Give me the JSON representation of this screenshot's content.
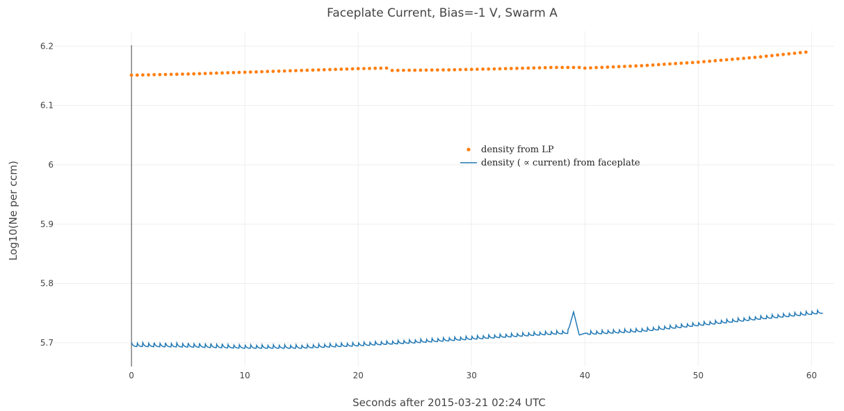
{
  "chart_data": {
    "type": "line",
    "title": "Faceplate Current, Bias=-1 V, Swarm A",
    "xlabel": "Seconds after 2015-03-21 02:24 UTC",
    "ylabel": "Log10(Ne per ccm)",
    "xlim": [
      -7,
      62
    ],
    "ylim": [
      5.66,
      6.225
    ],
    "xticks": [
      0,
      10,
      20,
      30,
      40,
      50,
      60
    ],
    "yticks": [
      5.7,
      5.8,
      5.9,
      6,
      6.1,
      6.2
    ],
    "grid": true,
    "legend_position": "center-right",
    "series": [
      {
        "name": "density from LP",
        "mode": "markers",
        "color": "#ff7f0e",
        "x": [
          0,
          5,
          10,
          15,
          20,
          22.5,
          23,
          28,
          33,
          37,
          39.5,
          40,
          45,
          50,
          55,
          59.5
        ],
        "y": [
          6.151,
          6.153,
          6.156,
          6.159,
          6.162,
          6.163,
          6.159,
          6.16,
          6.162,
          6.164,
          6.164,
          6.163,
          6.167,
          6.173,
          6.181,
          6.19
        ],
        "x_start": 0,
        "x_end": 59.5,
        "points": 120
      },
      {
        "name": "density ( ∝ current) from faceplate",
        "mode": "lines",
        "color": "#1f77b4",
        "x": [
          0,
          5,
          10,
          15,
          20,
          25,
          30,
          35,
          38.5,
          39.0,
          39.5,
          40,
          45,
          50,
          55,
          61
        ],
        "y": [
          5.696,
          5.695,
          5.693,
          5.693,
          5.697,
          5.702,
          5.708,
          5.714,
          5.718,
          5.752,
          5.713,
          5.716,
          5.721,
          5.731,
          5.741,
          5.752
        ],
        "ripple_period": 0.5,
        "ripple_amplitude": 0.007
      }
    ]
  }
}
